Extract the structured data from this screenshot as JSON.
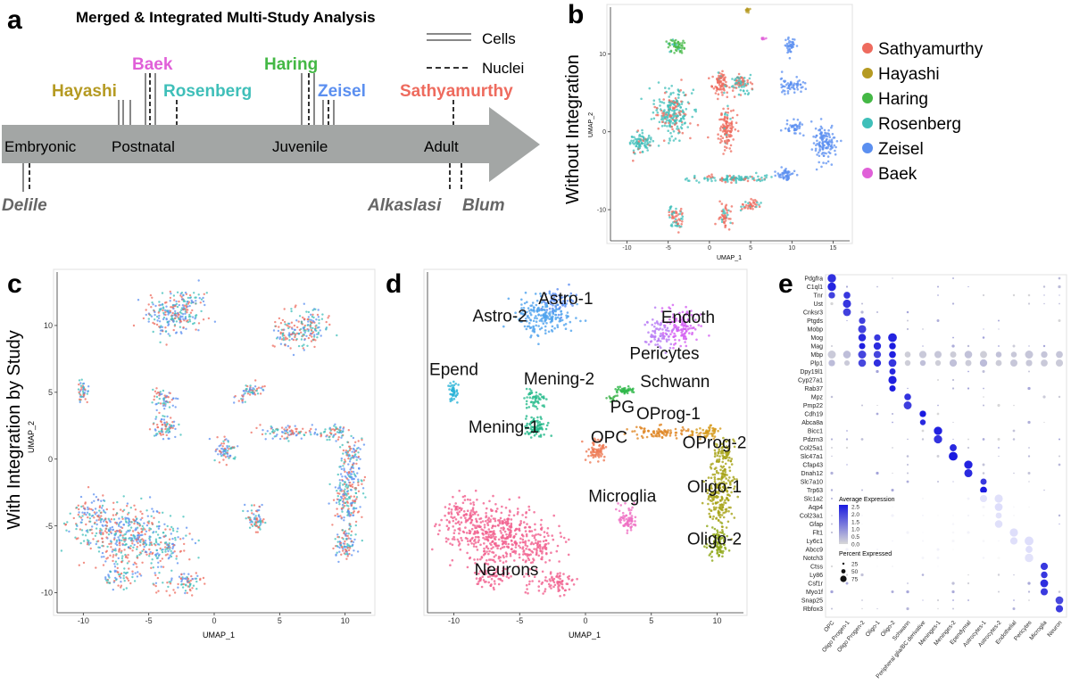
{
  "panel_letters": [
    "a",
    "b",
    "c",
    "d",
    "e"
  ],
  "chart_data": [
    {
      "panel": "a",
      "type": "timeline",
      "title": "Merged & Integrated Multi-Study Analysis",
      "legend": [
        {
          "label": "Cells",
          "style": "solid-double"
        },
        {
          "label": "Nuclei",
          "style": "dashed"
        }
      ],
      "stages": [
        "Embryonic",
        "Postnatal",
        "Juvenile",
        "Adult"
      ],
      "studies_above": [
        {
          "name": "Hayashi",
          "color": "#b59a22",
          "markers": [
            "cells",
            "cells"
          ]
        },
        {
          "name": "Baek",
          "color": "#e060d8",
          "markers": [
            "nuclei",
            "nuclei"
          ]
        },
        {
          "name": "Rosenberg",
          "color": "#3fbfb9",
          "markers": [
            "nuclei"
          ]
        },
        {
          "name": "Haring",
          "color": "#44b845",
          "markers": [
            "cells",
            "nuclei",
            "cells"
          ]
        },
        {
          "name": "Zeisel",
          "color": "#5b8ff0",
          "markers": [
            "cells",
            "cells"
          ]
        },
        {
          "name": "Sathyamurthy",
          "color": "#ee6b5e",
          "markers": [
            "nuclei"
          ]
        }
      ],
      "studies_below": [
        {
          "name": "Delile",
          "color": "#666666",
          "markers": [
            "cells",
            "nuclei"
          ]
        },
        {
          "name": "Alkaslasi",
          "color": "#666666",
          "markers": [
            "nuclei"
          ]
        },
        {
          "name": "Blum",
          "color": "#666666",
          "markers": [
            "nuclei"
          ]
        }
      ]
    },
    {
      "panel": "b",
      "type": "scatter",
      "side_label": "Without Integration",
      "xlabel": "UMAP_1",
      "ylabel": "UMAP_2",
      "xlim": [
        -12,
        17
      ],
      "ylim": [
        -14,
        16
      ],
      "xticks": [
        "-10",
        "-5",
        "0",
        "5",
        "10",
        "15"
      ],
      "yticks": [
        "10",
        "0",
        "-10"
      ],
      "legend": [
        {
          "label": "Sathyamurthy",
          "color": "#ee6b5e"
        },
        {
          "label": "Hayashi",
          "color": "#b59a22"
        },
        {
          "label": "Haring",
          "color": "#44b845"
        },
        {
          "label": "Rosenberg",
          "color": "#3fbfb9"
        },
        {
          "label": "Zeisel",
          "color": "#5b8ff0"
        },
        {
          "label": "Baek",
          "color": "#e060d8"
        }
      ],
      "clusters": [
        {
          "x": -4.5,
          "y": 2.5,
          "sx": 1.8,
          "sy": 2.5,
          "n": 240,
          "mix": [
            [
              3,
              0.65
            ],
            [
              0,
              0.35
            ]
          ]
        },
        {
          "x": -8.5,
          "y": -1.5,
          "sx": 1.2,
          "sy": 1.3,
          "n": 90,
          "mix": [
            [
              3,
              0.8
            ],
            [
              0,
              0.2
            ]
          ]
        },
        {
          "x": 1.3,
          "y": 6.2,
          "sx": 0.8,
          "sy": 1.1,
          "n": 80,
          "mix": [
            [
              0,
              0.9
            ],
            [
              3,
              0.1
            ]
          ]
        },
        {
          "x": 2.0,
          "y": 0.5,
          "sx": 0.9,
          "sy": 2.4,
          "n": 120,
          "mix": [
            [
              0,
              0.95
            ],
            [
              3,
              0.05
            ]
          ]
        },
        {
          "x": 3.8,
          "y": 6.3,
          "sx": 1.1,
          "sy": 0.9,
          "n": 80,
          "mix": [
            [
              3,
              0.5
            ],
            [
              0,
              0.5
            ]
          ]
        },
        {
          "x": -4.0,
          "y": 11.0,
          "sx": 0.9,
          "sy": 0.8,
          "n": 55,
          "mix": [
            [
              2,
              0.9
            ],
            [
              3,
              0.1
            ]
          ]
        },
        {
          "x": 4.6,
          "y": 15.6,
          "sx": 0.25,
          "sy": 0.25,
          "n": 14,
          "mix": [
            [
              1,
              1
            ]
          ]
        },
        {
          "x": 9.8,
          "y": 11.0,
          "sx": 0.6,
          "sy": 0.8,
          "n": 40,
          "mix": [
            [
              4,
              1
            ]
          ]
        },
        {
          "x": 10.0,
          "y": 6.0,
          "sx": 1.3,
          "sy": 0.8,
          "n": 60,
          "mix": [
            [
              4,
              1
            ]
          ]
        },
        {
          "x": 10.2,
          "y": 0.5,
          "sx": 0.8,
          "sy": 0.7,
          "n": 40,
          "mix": [
            [
              4,
              1
            ]
          ]
        },
        {
          "x": 14.0,
          "y": -1.5,
          "sx": 1.3,
          "sy": 1.9,
          "n": 130,
          "mix": [
            [
              4,
              1
            ]
          ]
        },
        {
          "x": 9.4,
          "y": -5.5,
          "sx": 1.0,
          "sy": 0.7,
          "n": 50,
          "mix": [
            [
              4,
              1
            ]
          ]
        },
        {
          "x": 2.8,
          "y": -6.0,
          "sx": 3.6,
          "sy": 0.35,
          "n": 110,
          "mix": [
            [
              3,
              0.8
            ],
            [
              0,
              0.2
            ]
          ]
        },
        {
          "x": -4.0,
          "y": -11.0,
          "sx": 0.8,
          "sy": 1.2,
          "n": 60,
          "mix": [
            [
              0,
              0.6
            ],
            [
              3,
              0.4
            ]
          ]
        },
        {
          "x": 1.8,
          "y": -11.0,
          "sx": 0.6,
          "sy": 1.2,
          "n": 50,
          "mix": [
            [
              0,
              0.8
            ],
            [
              3,
              0.2
            ]
          ]
        },
        {
          "x": 5.0,
          "y": -9.5,
          "sx": 0.9,
          "sy": 0.7,
          "n": 40,
          "mix": [
            [
              0,
              0.7
            ],
            [
              3,
              0.3
            ]
          ]
        },
        {
          "x": 6.5,
          "y": 12.0,
          "sx": 0.2,
          "sy": 0.2,
          "n": 8,
          "mix": [
            [
              5,
              1
            ]
          ]
        }
      ]
    },
    {
      "panel": "c",
      "type": "scatter",
      "side_label": "With Integration by Study",
      "xlabel": "UMAP_1",
      "ylabel": "UMAP_2",
      "xlim": [
        -12,
        12
      ],
      "ylim": [
        -11.5,
        14
      ],
      "xticks": [
        "-10",
        "-5",
        "0",
        "5",
        "10"
      ],
      "yticks": [
        "10",
        "5",
        "0",
        "-5",
        "-10"
      ],
      "legend_ref": "same colors as panel b"
    },
    {
      "panel": "d",
      "type": "scatter",
      "xlabel": "UMAP_1",
      "xlim": [
        -12,
        12
      ],
      "ylim": [
        -11.5,
        14
      ],
      "xticks": [
        "-10",
        "-5",
        "0",
        "5",
        "10"
      ],
      "clusters": [
        {
          "name": "Astro-2",
          "label_x": -6.5,
          "label_y": 10.3,
          "color": "#4fa3ee",
          "x": -3.2,
          "y": 10.8,
          "sx": 1.8,
          "sy": 1.1,
          "n": 200
        },
        {
          "name": "Astro-1",
          "label_x": -1.5,
          "label_y": 11.6,
          "color": "#5a8cf2",
          "x": -2.2,
          "y": 11.8,
          "sx": 1.0,
          "sy": 0.8,
          "n": 60
        },
        {
          "name": "Endoth",
          "label_x": 7.8,
          "label_y": 10.2,
          "color": "#d561f2",
          "x": 7.2,
          "y": 9.9,
          "sx": 1.1,
          "sy": 1.1,
          "n": 130
        },
        {
          "name": "Pericytes",
          "label_x": 6.0,
          "label_y": 7.5,
          "color": "#b87cf5",
          "x": 5.6,
          "y": 9.3,
          "sx": 0.9,
          "sy": 0.9,
          "n": 70
        },
        {
          "name": "Epend",
          "label_x": -10.0,
          "label_y": 6.3,
          "color": "#29b3d7",
          "x": -10.0,
          "y": 5.0,
          "sx": 0.3,
          "sy": 0.55,
          "n": 45
        },
        {
          "name": "Mening-2",
          "label_x": -2.0,
          "label_y": 5.6,
          "color": "#2dbd8f",
          "x": -3.8,
          "y": 4.5,
          "sx": 0.6,
          "sy": 0.6,
          "n": 55
        },
        {
          "name": "Mening-1",
          "label_x": -6.2,
          "label_y": 2.0,
          "color": "#22b88a",
          "x": -3.8,
          "y": 2.4,
          "sx": 0.7,
          "sy": 0.8,
          "n": 80
        },
        {
          "name": "Schwann",
          "label_x": 6.8,
          "label_y": 5.4,
          "color": "#2fb84a",
          "x": 3.0,
          "y": 5.1,
          "sx": 0.55,
          "sy": 0.25,
          "n": 45
        },
        {
          "name": "PG",
          "label_x": 2.8,
          "label_y": 3.5,
          "color": "#3db14b",
          "x": 2.0,
          "y": 4.5,
          "sx": 0.3,
          "sy": 0.3,
          "n": 15
        },
        {
          "name": "OPC",
          "label_x": 1.8,
          "label_y": 1.2,
          "color": "#ee7a55",
          "x": 0.8,
          "y": 0.6,
          "sx": 0.6,
          "sy": 0.6,
          "n": 70
        },
        {
          "name": "OProg-1",
          "label_x": 6.3,
          "label_y": 3.0,
          "color": "#e08828",
          "x": 5.5,
          "y": 2.0,
          "sx": 2.2,
          "sy": 0.35,
          "n": 90
        },
        {
          "name": "OProg-2",
          "label_x": 9.8,
          "label_y": 0.8,
          "color": "#d69a1c",
          "x": 9.2,
          "y": 2.0,
          "sx": 0.8,
          "sy": 0.4,
          "n": 50
        },
        {
          "name": "Oligo-1",
          "label_x": 9.8,
          "label_y": -2.5,
          "color": "#a6a316",
          "x": 10.2,
          "y": -2.5,
          "sx": 0.8,
          "sy": 2.0,
          "n": 220
        },
        {
          "name": "Oligo-2",
          "label_x": 9.8,
          "label_y": -6.4,
          "color": "#8da614",
          "x": 10.0,
          "y": -6.3,
          "sx": 0.6,
          "sy": 1.0,
          "n": 90
        },
        {
          "name": "Microglia",
          "label_x": 2.8,
          "label_y": -3.2,
          "color": "#ef6fc3",
          "x": 3.2,
          "y": -4.5,
          "sx": 0.6,
          "sy": 0.8,
          "n": 70
        },
        {
          "name": "Neurons",
          "label_x": -6.0,
          "label_y": -8.7,
          "color": "#f1608e",
          "x": -6.5,
          "y": -5.8,
          "sx": 3.0,
          "sy": 1.8,
          "n": 420
        }
      ]
    },
    {
      "panel": "e",
      "type": "dotplot",
      "genes": [
        "Pdgfra",
        "C1ql1",
        "Tnr",
        "Ust",
        "Cnksr3",
        "Ptgds",
        "Mobp",
        "Mog",
        "Mag",
        "Mbp",
        "Plp1",
        "Dpy19l1",
        "Cyp27a1",
        "Rab37",
        "Mpz",
        "Pmp22",
        "Cdh19",
        "Abca8a",
        "Bicc1",
        "Pdzrn3",
        "Col25a1",
        "Slc47a1",
        "Cfap43",
        "Dnah12",
        "Slc7a10",
        "Trp63",
        "Slc1a2",
        "Aqp4",
        "Col23a1",
        "Gfap",
        "Flt1",
        "Ly6c1",
        "Abcc9",
        "Notch3",
        "Ctss",
        "Ly86",
        "Csf1r",
        "Myo1f",
        "Snap25",
        "Rbfox3"
      ],
      "cell_types": [
        "OPC",
        "Oligo Progen-1",
        "Oligo Progen-2",
        "Oligo-1",
        "Oligo-2",
        "Schwann",
        "Peripheral glia/BC derivative",
        "Meninges-1",
        "Meninges-2",
        "Ependymal",
        "Astrocytes-1",
        "Astrocytes-2",
        "Endothelial",
        "Pericytes",
        "Microglia",
        "Neuron"
      ],
      "marker_groups": [
        {
          "cell_type": 0,
          "genes": [
            0,
            1,
            2
          ]
        },
        {
          "cell_type": 1,
          "genes": [
            2,
            3,
            4
          ]
        },
        {
          "cell_type": 2,
          "genes": [
            5,
            6,
            7,
            8,
            9,
            10
          ]
        },
        {
          "cell_type": 3,
          "genes": [
            7,
            8,
            9,
            10
          ]
        },
        {
          "cell_type": 4,
          "genes": [
            7,
            8,
            9,
            10,
            11,
            12,
            13
          ]
        },
        {
          "cell_type": 5,
          "genes": [
            14,
            15
          ]
        },
        {
          "cell_type": 6,
          "genes": [
            16,
            17
          ]
        },
        {
          "cell_type": 7,
          "genes": [
            18,
            19
          ]
        },
        {
          "cell_type": 8,
          "genes": [
            20,
            21
          ]
        },
        {
          "cell_type": 9,
          "genes": [
            22,
            23
          ]
        },
        {
          "cell_type": 10,
          "genes": [
            24,
            25,
            26
          ]
        },
        {
          "cell_type": 11,
          "genes": [
            26,
            27,
            28,
            29
          ]
        },
        {
          "cell_type": 12,
          "genes": [
            30,
            31
          ]
        },
        {
          "cell_type": 13,
          "genes": [
            31,
            32,
            33
          ]
        },
        {
          "cell_type": 14,
          "genes": [
            34,
            35,
            36,
            37
          ]
        },
        {
          "cell_type": 15,
          "genes": [
            38,
            39
          ]
        }
      ],
      "color_legend": {
        "title": "Average Expression",
        "ticks": [
          "2.5",
          "2.0",
          "1.5",
          "1.0",
          "0.5",
          "0.0"
        ],
        "low": "#d8d8d8",
        "high": "#1a1ae0"
      },
      "size_legend": {
        "title": "Percent Expressed",
        "values": [
          "25",
          "50",
          "75"
        ]
      }
    }
  ]
}
